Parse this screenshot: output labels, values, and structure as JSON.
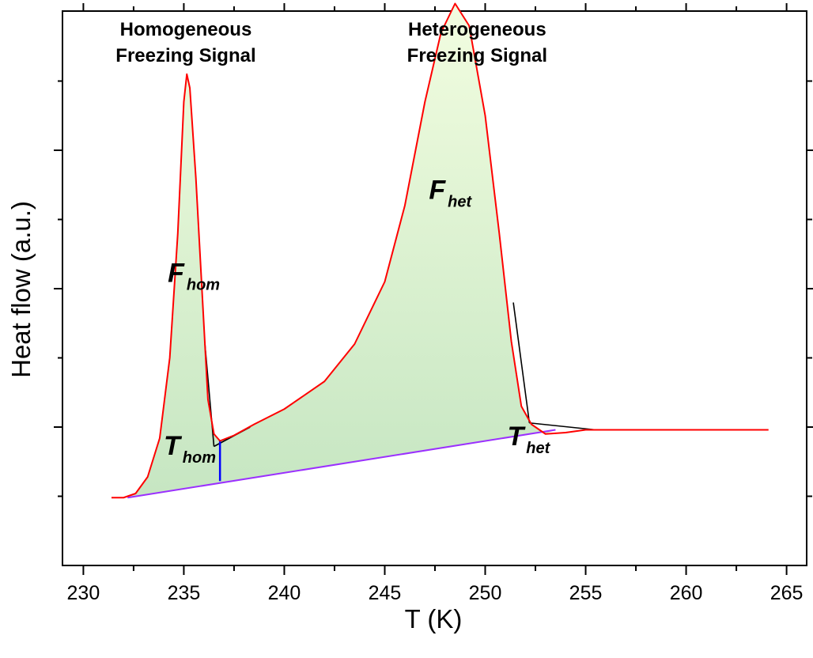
{
  "chart_data": {
    "type": "line",
    "xlabel": "T (K)",
    "ylabel": "Heat flow (a.u.)",
    "xlim": [
      229,
      266
    ],
    "ylim": [
      0,
      4
    ],
    "grid": false,
    "x_ticks": [
      "230",
      "235",
      "240",
      "245",
      "250",
      "255",
      "260",
      "265"
    ],
    "y_tick_labels_shown": false,
    "series": [
      {
        "name": "",
        "color": "#ff0000",
        "points": [
          [
            231.4,
            0.49
          ],
          [
            232.0,
            0.49
          ],
          [
            232.6,
            0.52
          ],
          [
            233.2,
            0.64
          ],
          [
            233.8,
            0.92
          ],
          [
            234.3,
            1.5
          ],
          [
            234.7,
            2.4
          ],
          [
            235.0,
            3.35
          ],
          [
            235.15,
            3.55
          ],
          [
            235.3,
            3.45
          ],
          [
            235.6,
            2.8
          ],
          [
            235.9,
            2.0
          ],
          [
            236.2,
            1.2
          ],
          [
            236.5,
            0.95
          ],
          [
            236.8,
            0.9
          ],
          [
            237.5,
            0.94
          ],
          [
            238.5,
            1.02
          ],
          [
            240.0,
            1.13
          ],
          [
            242.0,
            1.33
          ],
          [
            243.5,
            1.6
          ],
          [
            245.0,
            2.05
          ],
          [
            246.0,
            2.6
          ],
          [
            247.0,
            3.35
          ],
          [
            247.8,
            3.85
          ],
          [
            248.5,
            4.06
          ],
          [
            249.2,
            3.9
          ],
          [
            250.0,
            3.25
          ],
          [
            250.7,
            2.4
          ],
          [
            251.3,
            1.62
          ],
          [
            251.8,
            1.15
          ],
          [
            252.3,
            1.02
          ],
          [
            253.0,
            0.95
          ],
          [
            254.0,
            0.96
          ],
          [
            255.0,
            0.98
          ],
          [
            260.0,
            0.98
          ],
          [
            264.1,
            0.98
          ]
        ]
      }
    ],
    "baseline": {
      "color": "#9b30ff",
      "points": [
        [
          232.2,
          0.49
        ],
        [
          253.5,
          0.98
        ]
      ]
    },
    "onset_line": {
      "color": "#0000ff",
      "x": 236.8,
      "y_from": 0.61,
      "y_to": 0.9
    },
    "tangent_lines": [
      {
        "color": "#000000",
        "points": [
          [
            236.05,
            1.6
          ],
          [
            236.5,
            0.86
          ]
        ]
      },
      {
        "color": "#000000",
        "points": [
          [
            236.5,
            0.86
          ],
          [
            238.3,
            1.0
          ]
        ]
      },
      {
        "color": "#000000",
        "points": [
          [
            251.4,
            1.9
          ],
          [
            252.2,
            1.03
          ]
        ]
      },
      {
        "color": "#000000",
        "points": [
          [
            252.2,
            1.03
          ],
          [
            255.5,
            0.98
          ]
        ]
      }
    ],
    "annotations": [
      {
        "text": "Homogeneous",
        "x": 235.1,
        "y": 3.83
      },
      {
        "text": "Freezing Signal",
        "x": 235.1,
        "y": 3.64
      },
      {
        "text": "Heterogeneous",
        "x": 249.6,
        "y": 3.83
      },
      {
        "text": "Freezing Signal",
        "x": 249.6,
        "y": 3.64
      },
      {
        "main": "F",
        "sub": "het",
        "x": 247.2,
        "y": 2.65
      },
      {
        "main": "F",
        "sub": "hom",
        "x": 234.2,
        "y": 2.05
      },
      {
        "main": "T",
        "sub": "hom",
        "x": 234.0,
        "y": 0.8
      },
      {
        "main": "T",
        "sub": "het",
        "x": 251.1,
        "y": 0.87
      }
    ],
    "fill_gradient": [
      "#f2fde0",
      "#c6e6c2"
    ]
  }
}
